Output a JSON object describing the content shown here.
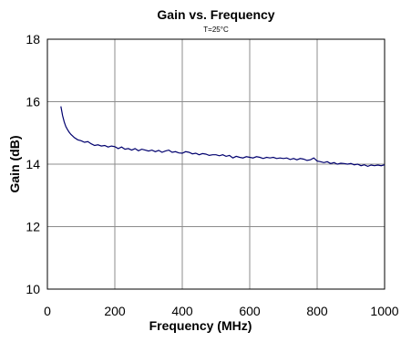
{
  "chart_data": {
    "type": "line",
    "title": "Gain vs. Frequency",
    "subtitle": "T=25°C",
    "xlabel": "Frequency (MHz)",
    "ylabel": "Gain (dB)",
    "xlim": [
      0,
      1000
    ],
    "ylim": [
      10,
      18
    ],
    "x_ticks": [
      0,
      200,
      400,
      600,
      800,
      1000
    ],
    "y_ticks": [
      10,
      12,
      14,
      16,
      18
    ],
    "grid": true,
    "colors": {
      "series": "#00006e",
      "grid": "#8c8c8c"
    },
    "series": [
      {
        "x": [
          40,
          45,
          50,
          55,
          60,
          65,
          70,
          75,
          80,
          90,
          100,
          110,
          120,
          130,
          140,
          150,
          160,
          170,
          180,
          190,
          200,
          210,
          220,
          230,
          240,
          250,
          260,
          270,
          280,
          290,
          300,
          310,
          320,
          330,
          340,
          350,
          360,
          370,
          380,
          390,
          400,
          410,
          420,
          430,
          440,
          450,
          460,
          470,
          480,
          490,
          500,
          510,
          520,
          530,
          540,
          550,
          560,
          570,
          580,
          590,
          600,
          610,
          620,
          630,
          640,
          650,
          660,
          670,
          680,
          690,
          700,
          710,
          720,
          730,
          740,
          750,
          760,
          770,
          780,
          790,
          800,
          810,
          820,
          830,
          840,
          850,
          860,
          870,
          880,
          890,
          900,
          910,
          920,
          930,
          940,
          950,
          960,
          970,
          980,
          990,
          1000
        ],
        "values": [
          15.85,
          15.55,
          15.35,
          15.2,
          15.1,
          15.02,
          14.95,
          14.9,
          14.85,
          14.78,
          14.75,
          14.7,
          14.72,
          14.65,
          14.6,
          14.62,
          14.58,
          14.6,
          14.55,
          14.58,
          14.56,
          14.5,
          14.55,
          14.48,
          14.5,
          14.45,
          14.5,
          14.43,
          14.48,
          14.45,
          14.42,
          14.45,
          14.4,
          14.44,
          14.38,
          14.42,
          14.45,
          14.38,
          14.4,
          14.36,
          14.35,
          14.4,
          14.38,
          14.33,
          14.35,
          14.3,
          14.34,
          14.32,
          14.28,
          14.3,
          14.3,
          14.27,
          14.3,
          14.25,
          14.28,
          14.2,
          14.25,
          14.22,
          14.2,
          14.24,
          14.22,
          14.2,
          14.24,
          14.22,
          14.18,
          14.22,
          14.2,
          14.22,
          14.18,
          14.2,
          14.18,
          14.2,
          14.15,
          14.18,
          14.14,
          14.18,
          14.16,
          14.12,
          14.14,
          14.2,
          14.1,
          14.08,
          14.05,
          14.08,
          14.02,
          14.05,
          14.0,
          14.03,
          14.02,
          14.0,
          14.02,
          13.98,
          14.0,
          13.95,
          13.98,
          13.93,
          13.97,
          13.95,
          13.97,
          13.95,
          13.98
        ]
      }
    ]
  }
}
